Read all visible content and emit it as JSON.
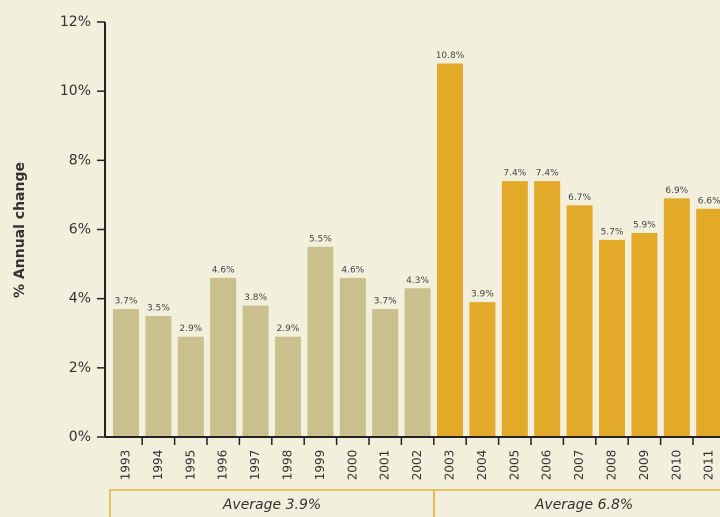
{
  "chart_data": {
    "type": "bar",
    "y_label": "% Annual change",
    "categories": [
      "1993",
      "1994",
      "1995",
      "1996",
      "1997",
      "1998",
      "1999",
      "2000",
      "2001",
      "2002",
      "2003",
      "2004",
      "2005",
      "2006",
      "2007",
      "2008",
      "2009",
      "2010",
      "2011"
    ],
    "values": [
      3.7,
      3.5,
      2.9,
      4.6,
      3.8,
      2.9,
      5.5,
      4.6,
      3.7,
      4.3,
      10.8,
      3.9,
      7.4,
      7.4,
      6.7,
      5.7,
      5.9,
      6.9,
      6.6
    ],
    "value_labels": [
      "3.7%",
      "3.5%",
      "2.9%",
      "4.6%",
      "3.8%",
      "2.9%",
      "5.5%",
      "4.6%",
      "3.7%",
      "4.3%",
      "10.8%",
      "3.9%",
      "7.4%",
      "7.4%",
      "6.7%",
      "5.7%",
      "5.9%",
      "6.9%",
      "6.6%"
    ],
    "colors": [
      "#c9c08d",
      "#c9c08d",
      "#c9c08d",
      "#c9c08d",
      "#c9c08d",
      "#c9c08d",
      "#c9c08d",
      "#c9c08d",
      "#c9c08d",
      "#c9c08d",
      "#e3a929",
      "#e3a929",
      "#e3a929",
      "#e3a929",
      "#e3a929",
      "#e3a929",
      "#e3a929",
      "#e3a929",
      "#e3a929"
    ],
    "ylim": [
      0,
      12
    ],
    "yticks": [
      {
        "value": 0,
        "label": "0%"
      },
      {
        "value": 2,
        "label": "2%"
      },
      {
        "value": 4,
        "label": "4%"
      },
      {
        "value": 6,
        "label": "6%"
      },
      {
        "value": 8,
        "label": "8%"
      },
      {
        "value": 10,
        "label": "10%"
      },
      {
        "value": 12,
        "label": "12%"
      }
    ],
    "annotations": [
      "Average 3.9%",
      "Average 6.8%"
    ]
  }
}
